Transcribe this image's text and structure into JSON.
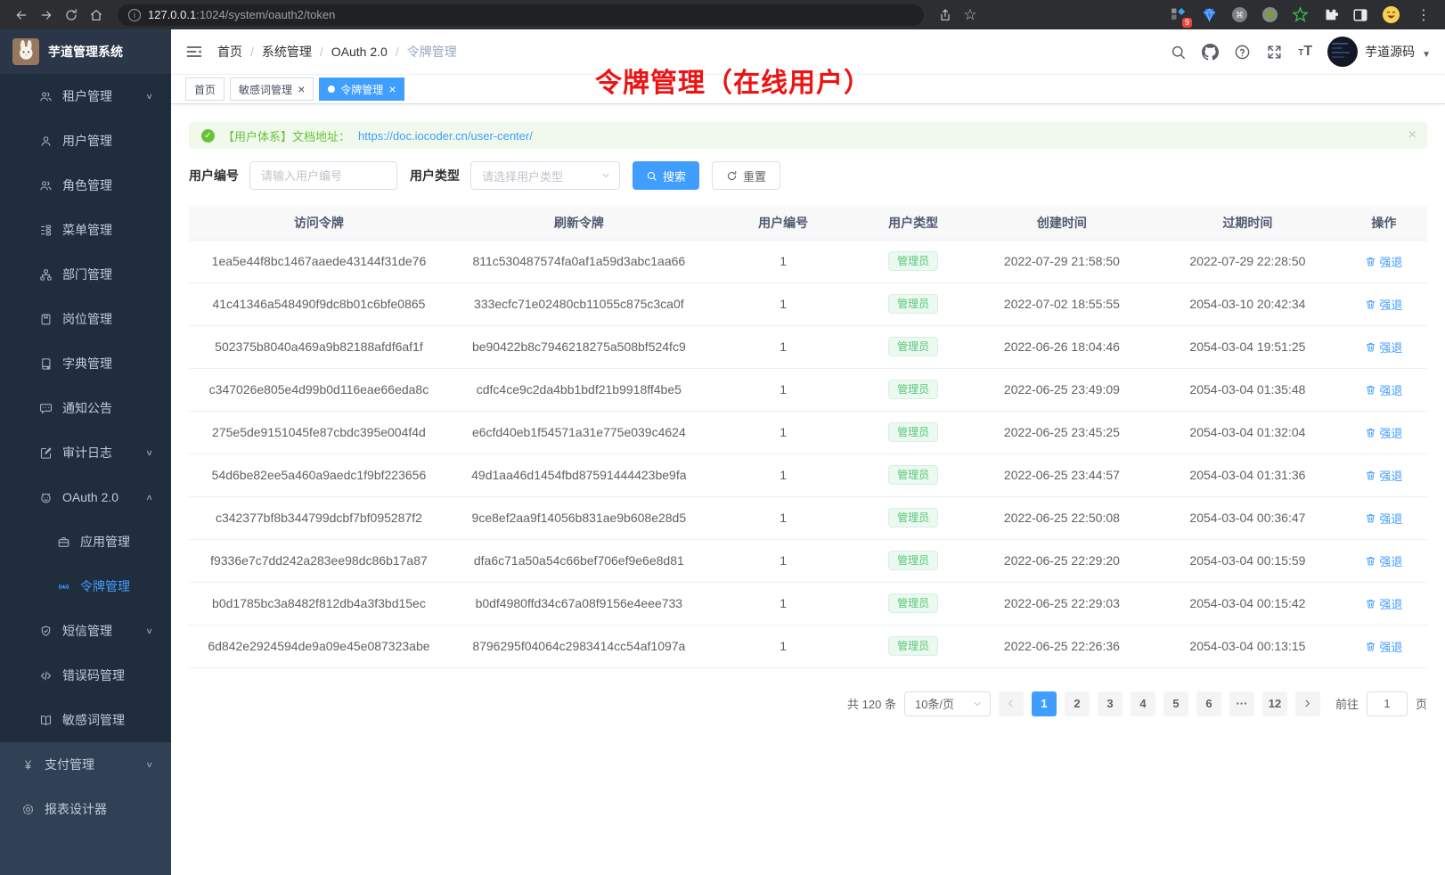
{
  "colors": {
    "accent": "#409eff",
    "success": "#67c23a",
    "tag_green": "#57c878",
    "annotation_red": "#ee1313",
    "sidebar_dark": "#1f2d3d",
    "sidebar_light": "#304156"
  },
  "browser": {
    "url_host": "127.0.0.1",
    "url_rest": ":1024/system/oauth2/token",
    "extension_badge": "9"
  },
  "sidebar": {
    "title": "芋道管理系统",
    "menu_dark": [
      {
        "label": "租户管理",
        "icon": "users",
        "arrow": "∨"
      },
      {
        "label": "用户管理",
        "icon": "user"
      },
      {
        "label": "角色管理",
        "icon": "role"
      },
      {
        "label": "菜单管理",
        "icon": "menu-tree"
      },
      {
        "label": "部门管理",
        "icon": "org"
      },
      {
        "label": "岗位管理",
        "icon": "badge"
      },
      {
        "label": "字典管理",
        "icon": "dict"
      },
      {
        "label": "通知公告",
        "icon": "message"
      },
      {
        "label": "审计日志",
        "icon": "audit",
        "arrow": "∨"
      },
      {
        "label": "OAuth 2.0",
        "icon": "oauth",
        "arrow": "∧"
      },
      {
        "label": "应用管理",
        "icon": "app",
        "indent": true
      },
      {
        "label": "令牌管理",
        "icon": "token",
        "indent": true,
        "active": true
      },
      {
        "label": "短信管理",
        "icon": "sms",
        "arrow": "∨"
      },
      {
        "label": "错误码管理",
        "icon": "code"
      },
      {
        "label": "敏感词管理",
        "icon": "book"
      }
    ],
    "menu_light": [
      {
        "label": "支付管理",
        "icon": "pay",
        "arrow": "∨"
      },
      {
        "label": "报表设计器",
        "icon": "report"
      }
    ]
  },
  "navbar": {
    "breadcrumb": [
      {
        "label": "首页",
        "sep": "/"
      },
      {
        "label": "系统管理",
        "sep": "/"
      },
      {
        "label": "OAuth 2.0",
        "sep": "/"
      },
      {
        "label": "令牌管理",
        "current": true
      }
    ],
    "username": "芋道源码"
  },
  "tabs": [
    {
      "label": "首页"
    },
    {
      "label": "敏感词管理",
      "closable": true
    },
    {
      "label": "令牌管理",
      "closable": true,
      "active": true
    }
  ],
  "annotation": "令牌管理（在线用户）",
  "alert": {
    "text": "【用户体系】文档地址：",
    "link": "https://doc.iocoder.cn/user-center/"
  },
  "filter": {
    "user_id_label": "用户编号",
    "user_id_placeholder": "请输入用户编号",
    "user_type_label": "用户类型",
    "user_type_placeholder": "请选择用户类型",
    "search_label": "搜索",
    "reset_label": "重置"
  },
  "table": {
    "columns": [
      "访问令牌",
      "刷新令牌",
      "用户编号",
      "用户类型",
      "创建时间",
      "过期时间",
      "操作"
    ],
    "action_label": "强退",
    "rows": [
      {
        "access_token": "1ea5e44f8bc1467aaede43144f31de76",
        "refresh_token": "811c530487574fa0af1a59d3abc1aa66",
        "user_id": "1",
        "user_type": "管理员",
        "create_time": "2022-07-29 21:58:50",
        "expire_time": "2022-07-29 22:28:50"
      },
      {
        "access_token": "41c41346a548490f9dc8b01c6bfe0865",
        "refresh_token": "333ecfc71e02480cb11055c875c3ca0f",
        "user_id": "1",
        "user_type": "管理员",
        "create_time": "2022-07-02 18:55:55",
        "expire_time": "2054-03-10 20:42:34"
      },
      {
        "access_token": "502375b8040a469a9b82188afdf6af1f",
        "refresh_token": "be90422b8c7946218275a508bf524fc9",
        "user_id": "1",
        "user_type": "管理员",
        "create_time": "2022-06-26 18:04:46",
        "expire_time": "2054-03-04 19:51:25"
      },
      {
        "access_token": "c347026e805e4d99b0d116eae66eda8c",
        "refresh_token": "cdfc4ce9c2da4bb1bdf21b9918ff4be5",
        "user_id": "1",
        "user_type": "管理员",
        "create_time": "2022-06-25 23:49:09",
        "expire_time": "2054-03-04 01:35:48"
      },
      {
        "access_token": "275e5de9151045fe87cbdc395e004f4d",
        "refresh_token": "e6cfd40eb1f54571a31e775e039c4624",
        "user_id": "1",
        "user_type": "管理员",
        "create_time": "2022-06-25 23:45:25",
        "expire_time": "2054-03-04 01:32:04"
      },
      {
        "access_token": "54d6be82ee5a460a9aedc1f9bf223656",
        "refresh_token": "49d1aa46d1454fbd87591444423be9fa",
        "user_id": "1",
        "user_type": "管理员",
        "create_time": "2022-06-25 23:44:57",
        "expire_time": "2054-03-04 01:31:36"
      },
      {
        "access_token": "c342377bf8b344799dcbf7bf095287f2",
        "refresh_token": "9ce8ef2aa9f14056b831ae9b608e28d5",
        "user_id": "1",
        "user_type": "管理员",
        "create_time": "2022-06-25 22:50:08",
        "expire_time": "2054-03-04 00:36:47"
      },
      {
        "access_token": "f9336e7c7dd242a283ee98dc86b17a87",
        "refresh_token": "dfa6c71a50a54c66bef706ef9e6e8d81",
        "user_id": "1",
        "user_type": "管理员",
        "create_time": "2022-06-25 22:29:20",
        "expire_time": "2054-03-04 00:15:59"
      },
      {
        "access_token": "b0d1785bc3a8482f812db4a3f3bd15ec",
        "refresh_token": "b0df4980ffd34c67a08f9156e4eee733",
        "user_id": "1",
        "user_type": "管理员",
        "create_time": "2022-06-25 22:29:03",
        "expire_time": "2054-03-04 00:15:42"
      },
      {
        "access_token": "6d842e2924594de9a09e45e087323abe",
        "refresh_token": "8796295f04064c2983414cc54af1097a",
        "user_id": "1",
        "user_type": "管理员",
        "create_time": "2022-06-25 22:26:36",
        "expire_time": "2054-03-04 00:13:15"
      }
    ]
  },
  "pagination": {
    "total": "共 120 条",
    "page_size": "10条/页",
    "pages": [
      {
        "label": "1",
        "active": true
      },
      {
        "label": "2"
      },
      {
        "label": "3"
      },
      {
        "label": "4"
      },
      {
        "label": "5"
      },
      {
        "label": "6"
      },
      {
        "label": "···"
      },
      {
        "label": "12"
      }
    ],
    "goto_label": "前往",
    "goto_value": "1",
    "page_suffix": "页"
  }
}
